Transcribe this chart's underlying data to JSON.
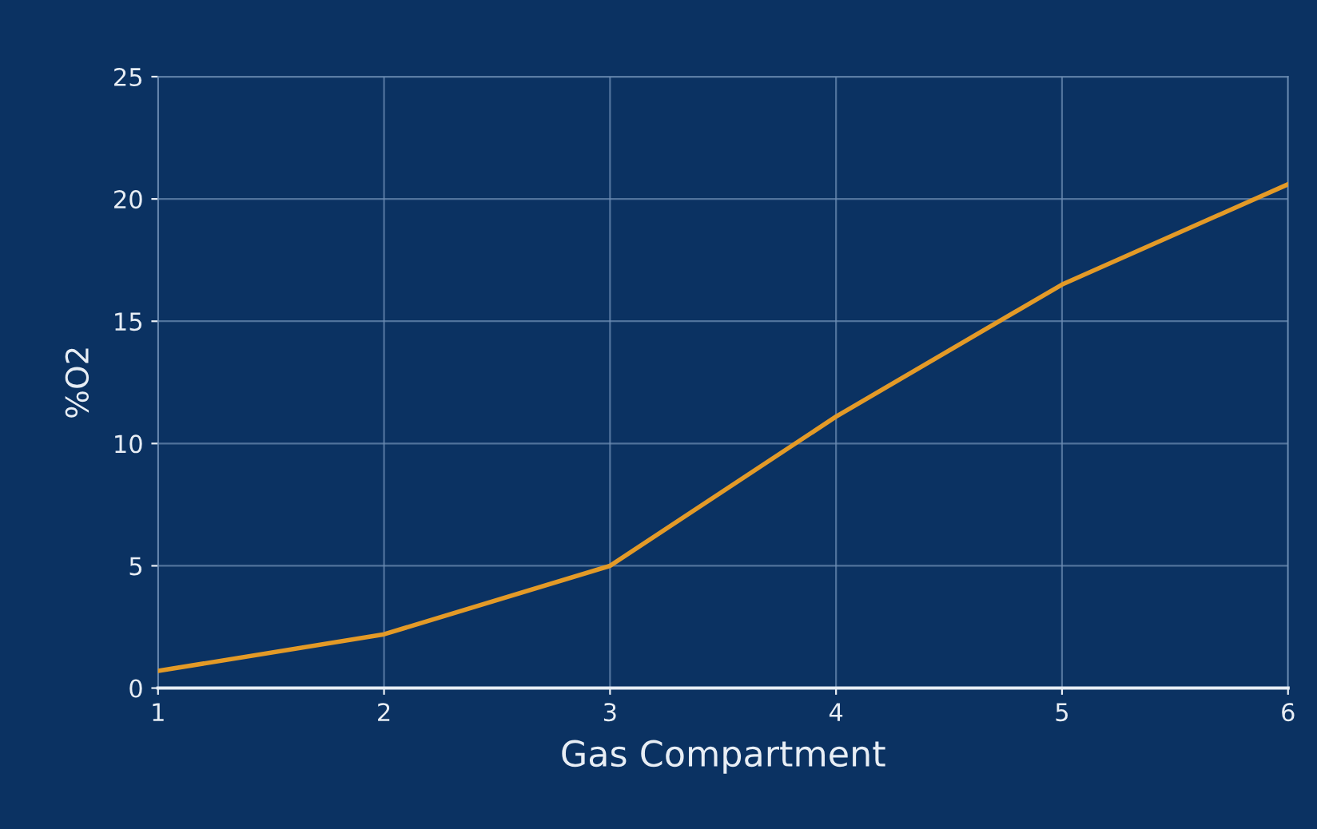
{
  "chart_data": {
    "type": "line",
    "xlabel": "Gas Compartment",
    "ylabel": "%O2",
    "x": [
      1,
      2,
      3,
      4,
      5,
      6
    ],
    "series": [
      {
        "color": "#e39a27",
        "values": [
          0.7,
          2.2,
          5.0,
          11.1,
          16.5,
          20.6
        ]
      }
    ],
    "xlim": [
      1,
      6
    ],
    "xticks": [
      1,
      2,
      3,
      4,
      5,
      6
    ],
    "ylim": [
      0,
      25
    ],
    "yticks": [
      0,
      5,
      10,
      15,
      20,
      25
    ],
    "grid": true,
    "marker": "none",
    "line_style": "solid"
  }
}
